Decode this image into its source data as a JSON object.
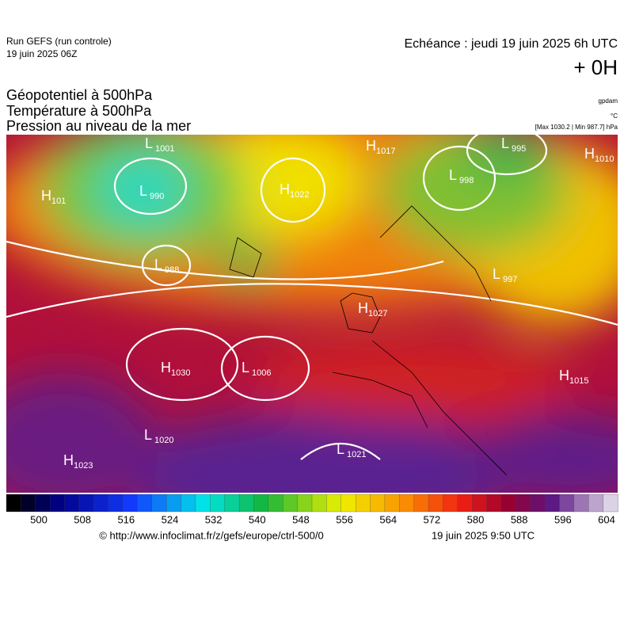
{
  "header": {
    "run": "Run GEFS (run controle)",
    "run_date": "19 juin 2025 06Z",
    "echeance": "Echéance : jeudi 19 juin 2025 6h UTC",
    "lead": "+ 0H"
  },
  "titles": [
    "Géopotentiel à 500hPa",
    "Température à 500hPa",
    "Pression au niveau de la mer"
  ],
  "units": [
    "gpdam",
    "°C",
    "[Max 1030.2 | Min 987.7] hPa"
  ],
  "pressure_centers": [
    {
      "letter": "L",
      "value": "1001"
    },
    {
      "letter": "H",
      "value": "101"
    },
    {
      "letter": "L",
      "value": "990"
    },
    {
      "letter": "H",
      "value": "1022"
    },
    {
      "letter": "L",
      "value": "988"
    },
    {
      "letter": "H",
      "value": "1017"
    },
    {
      "letter": "L",
      "value": "998"
    },
    {
      "letter": "L",
      "value": "995"
    },
    {
      "letter": "H",
      "value": "1010"
    },
    {
      "letter": "L",
      "value": "997"
    },
    {
      "letter": "H",
      "value": "1027"
    },
    {
      "letter": "H",
      "value": "1030"
    },
    {
      "letter": "L",
      "value": "1006"
    },
    {
      "letter": "H",
      "value": "1015"
    },
    {
      "letter": "L",
      "value": "1020"
    },
    {
      "letter": "H",
      "value": "1023"
    },
    {
      "letter": "L",
      "value": "1021"
    }
  ],
  "colorbar": {
    "ticks": [
      500,
      508,
      516,
      524,
      532,
      540,
      548,
      556,
      564,
      572,
      580,
      588,
      596,
      604
    ]
  },
  "footer": {
    "url": "© http://www.infoclimat.fr/z/gefs/europe/ctrl-500/0",
    "time": "19 juin 2025  9:50 UTC"
  }
}
